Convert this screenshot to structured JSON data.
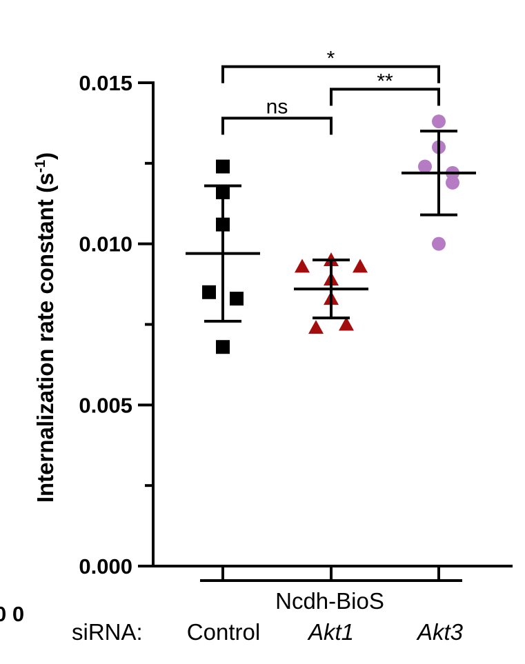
{
  "chart_data": {
    "type": "scatter",
    "ylabel": "Internalization rate constant (s",
    "ylabel_sup": "-1",
    "ylabel_close": ")",
    "ylim": [
      0,
      0.015
    ],
    "yticks": [
      "0.000",
      "0.005",
      "0.010",
      "0.015"
    ],
    "ytick_values": [
      0,
      0.005,
      0.01,
      0.015
    ],
    "group_label": "Ncdh-BioS",
    "row_label": "siRNA:",
    "categories": [
      "Control",
      "Akt1",
      "Akt3"
    ],
    "series": [
      {
        "category": "Control",
        "marker": "square",
        "color": "#000000",
        "values": [
          0.0124,
          0.0116,
          0.0106,
          0.0085,
          0.0083,
          0.0068
        ],
        "mean": 0.0097,
        "sd_upper": 0.0118,
        "sd_lower": 0.0076
      },
      {
        "category": "Akt1",
        "marker": "triangle",
        "color": "#a30d0d",
        "values": [
          0.0095,
          0.0093,
          0.0093,
          0.0089,
          0.0083,
          0.0074,
          0.0075
        ],
        "mean": 0.0086,
        "sd_upper": 0.0095,
        "sd_lower": 0.0077
      },
      {
        "category": "Akt3",
        "marker": "circle",
        "color": "#b57cc4",
        "values": [
          0.0138,
          0.013,
          0.0124,
          0.0122,
          0.0119,
          0.01
        ],
        "mean": 0.0122,
        "sd_upper": 0.0135,
        "sd_lower": 0.0109
      }
    ],
    "significance": [
      {
        "from": "Control",
        "to": "Akt3",
        "label": "*",
        "y": 0.0155
      },
      {
        "from": "Akt1",
        "to": "Akt3",
        "label": "**",
        "y": 0.0148
      },
      {
        "from": "Control",
        "to": "Akt1",
        "label": "ns",
        "y": 0.0139
      }
    ],
    "edge_fragment": "0 0"
  }
}
